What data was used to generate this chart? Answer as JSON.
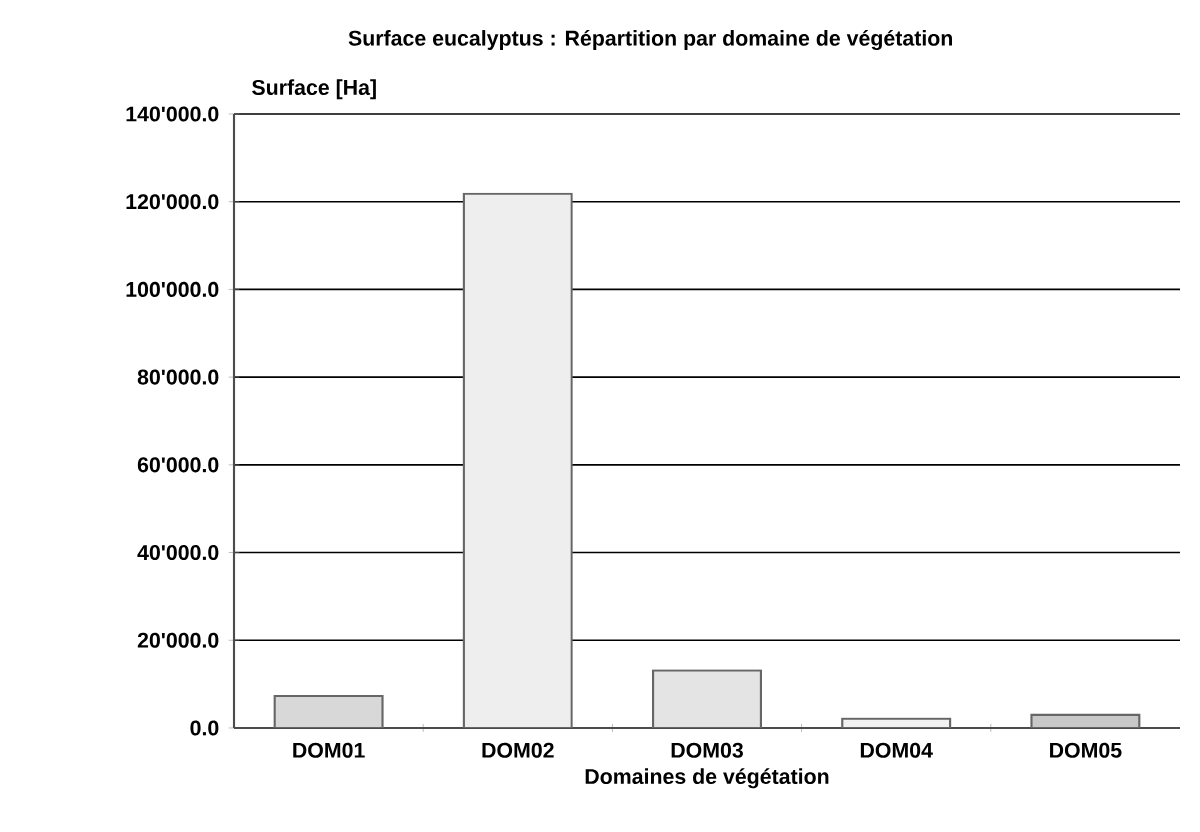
{
  "chart_data": {
    "type": "bar",
    "title": "Surface eucalyptus : Répartition par domaine de végétation",
    "xlabel": "Domaines de végétation",
    "ylabel": "Surface [Ha]",
    "categories": [
      "DOM01",
      "DOM02",
      "DOM03",
      "DOM04",
      "DOM05"
    ],
    "values": [
      7300,
      121800,
      13100,
      2100,
      3000
    ],
    "colors": [
      "#d8d8d8",
      "#eeeeee",
      "#e4e4e4",
      "#f2f2f2",
      "#c8c8c8"
    ],
    "ylim": [
      0,
      140000
    ],
    "yticks": [
      {
        "value": 0,
        "label": "0.0"
      },
      {
        "value": 20000,
        "label": "20'000.0"
      },
      {
        "value": 40000,
        "label": "40'000.0"
      },
      {
        "value": 60000,
        "label": "60'000.0"
      },
      {
        "value": 80000,
        "label": "80'000.0"
      },
      {
        "value": 100000,
        "label": "100'000.0"
      },
      {
        "value": 120000,
        "label": "120'000.0"
      },
      {
        "value": 140000,
        "label": "140'000.0"
      }
    ],
    "grid": "y"
  }
}
